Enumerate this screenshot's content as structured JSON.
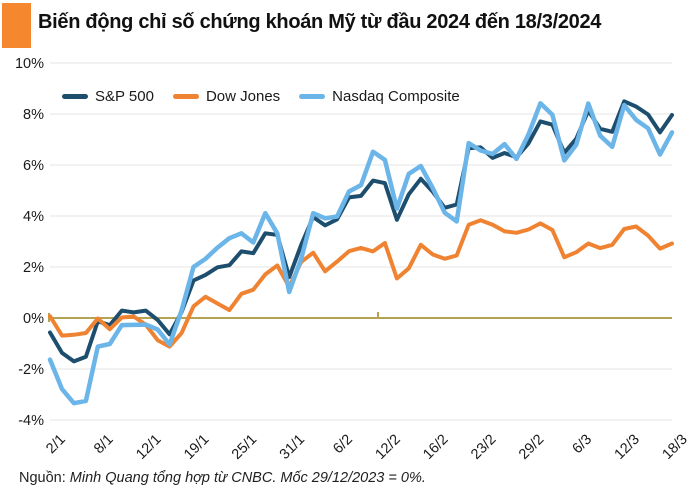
{
  "header": {
    "title": "Biến động chỉ số chứng khoán Mỹ từ đầu 2024 đến 18/3/2024",
    "accent_color": "#f5872e"
  },
  "footer": {
    "source_prefix": "Nguồn:",
    "source_text": " Minh Quang tổng hợp từ CNBC. Mốc 29/12/2023 = 0%."
  },
  "chart_data": {
    "type": "line",
    "title": "Biến động chỉ số chứng khoán Mỹ từ đầu 2024 đến 18/3/2024",
    "unit": "%",
    "ylim": [
      -4,
      10
    ],
    "y_ticks": [
      10,
      8,
      6,
      4,
      2,
      0,
      -2,
      -4
    ],
    "y_tick_labels": [
      "10%",
      "8%",
      "6%",
      "4%",
      "2%",
      "0%",
      "-2%",
      "-4%"
    ],
    "x_tick_labels": [
      "2/1",
      "8/1",
      "12/1",
      "19/1",
      "25/1",
      "31/1",
      "6/2",
      "12/2",
      "16/2",
      "23/2",
      "29/2",
      "6/3",
      "12/3",
      "18/3"
    ],
    "points_per_label": 4,
    "n_points": 53,
    "grid": true,
    "grid_color": "#eaeaea",
    "zero_line_color": "#b4a354",
    "legend_position": "top-left-inside",
    "series": [
      {
        "name": "S&P 500",
        "color": "#1d4e6e",
        "values": [
          -0.57,
          -1.37,
          -1.7,
          -1.52,
          -0.13,
          -0.28,
          0.29,
          0.22,
          0.29,
          -0.08,
          -0.64,
          0.23,
          1.47,
          1.69,
          1.99,
          2.07,
          2.61,
          2.54,
          3.32,
          3.26,
          1.6,
          2.87,
          3.96,
          3.63,
          3.87,
          4.73,
          4.79,
          5.39,
          5.29,
          3.85,
          4.85,
          5.46,
          4.95,
          4.32,
          4.45,
          6.66,
          6.69,
          6.28,
          6.47,
          6.3,
          6.85,
          7.71,
          7.58,
          6.48,
          7.03,
          8.13,
          7.42,
          7.3,
          8.5,
          8.29,
          7.98,
          7.28,
          7.96
        ]
      },
      {
        "name": "Dow Jones",
        "color": "#ef8331",
        "values": [
          0.07,
          -0.69,
          -0.66,
          -0.59,
          -0.02,
          -0.44,
          0.02,
          0.06,
          -0.26,
          -0.87,
          -1.12,
          -0.59,
          0.46,
          0.83,
          0.57,
          0.31,
          0.95,
          1.11,
          1.71,
          2.06,
          1.22,
          2.2,
          2.56,
          1.83,
          2.21,
          2.62,
          2.75,
          2.61,
          2.94,
          1.55,
          1.95,
          2.87,
          2.49,
          2.32,
          2.45,
          3.66,
          3.83,
          3.66,
          3.4,
          3.34,
          3.47,
          3.71,
          3.45,
          2.38,
          2.58,
          2.92,
          2.74,
          2.87,
          3.49,
          3.59,
          3.23,
          2.72,
          2.92
        ]
      },
      {
        "name": "Nasdaq Composite",
        "color": "#6cb5e9",
        "values": [
          -1.63,
          -2.79,
          -3.34,
          -3.25,
          -1.12,
          -1.02,
          -0.28,
          -0.27,
          -0.26,
          -0.45,
          -1.04,
          0.3,
          2.0,
          2.32,
          2.76,
          3.13,
          3.32,
          2.96,
          4.11,
          3.32,
          1.02,
          2.33,
          4.11,
          3.91,
          3.98,
          4.96,
          5.21,
          6.52,
          6.2,
          4.29,
          5.65,
          5.96,
          5.09,
          4.13,
          3.79,
          6.86,
          6.57,
          6.43,
          6.82,
          6.24,
          7.2,
          8.42,
          7.97,
          6.18,
          6.8,
          8.41,
          7.15,
          6.71,
          8.35,
          7.77,
          7.44,
          6.41,
          7.28
        ]
      }
    ]
  }
}
